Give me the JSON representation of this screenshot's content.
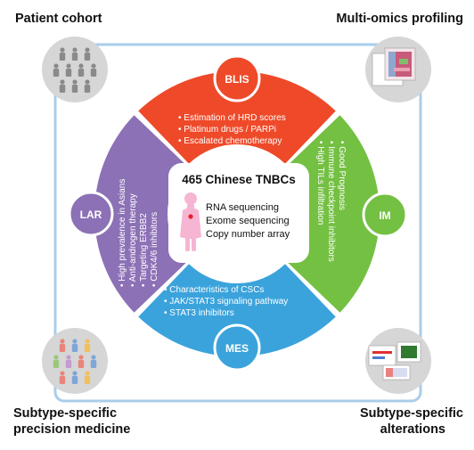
{
  "corners": {
    "top_left": "Patient cohort",
    "top_right": "Multi-omics profiling",
    "bottom_left": [
      "Subtype-specific",
      "precision medicine"
    ],
    "bottom_right": [
      "Subtype-specific",
      "alterations"
    ]
  },
  "center": {
    "title": "465 Chinese TNBCs",
    "methods": [
      "RNA sequencing",
      "Exome sequencing",
      "Copy number array"
    ]
  },
  "subtypes": {
    "blis": {
      "label": "BLIS",
      "color": "#ee4a2a",
      "items": [
        "Estimation of HRD scores",
        "Platinum drugs / PARPi",
        "Escalated chemotherapy"
      ]
    },
    "im": {
      "label": "IM",
      "color": "#74c043",
      "items": [
        "High TILs infiltration",
        "Immune checkpoint inhibitors",
        "Good Prognosis"
      ]
    },
    "mes": {
      "label": "MES",
      "color": "#3ba3dc",
      "items": [
        "Characteristics of CSCs",
        "JAK/STAT3 signaling pathway",
        "STAT3 inhibitors"
      ]
    },
    "lar": {
      "label": "LAR",
      "color": "#8c71b6",
      "items": [
        "High prevalence in Asians",
        "Anti-androgen therapy",
        "Targeting ERBB2",
        "CDK4/6 inhibitors"
      ]
    }
  },
  "colors": {
    "frame": "#a9cdea",
    "corner_circle": "#d6d6d6",
    "person_gray": "#8a8a8a",
    "person_pink": "#f5b5d3",
    "label_circle_stroke": "#ffffff"
  }
}
